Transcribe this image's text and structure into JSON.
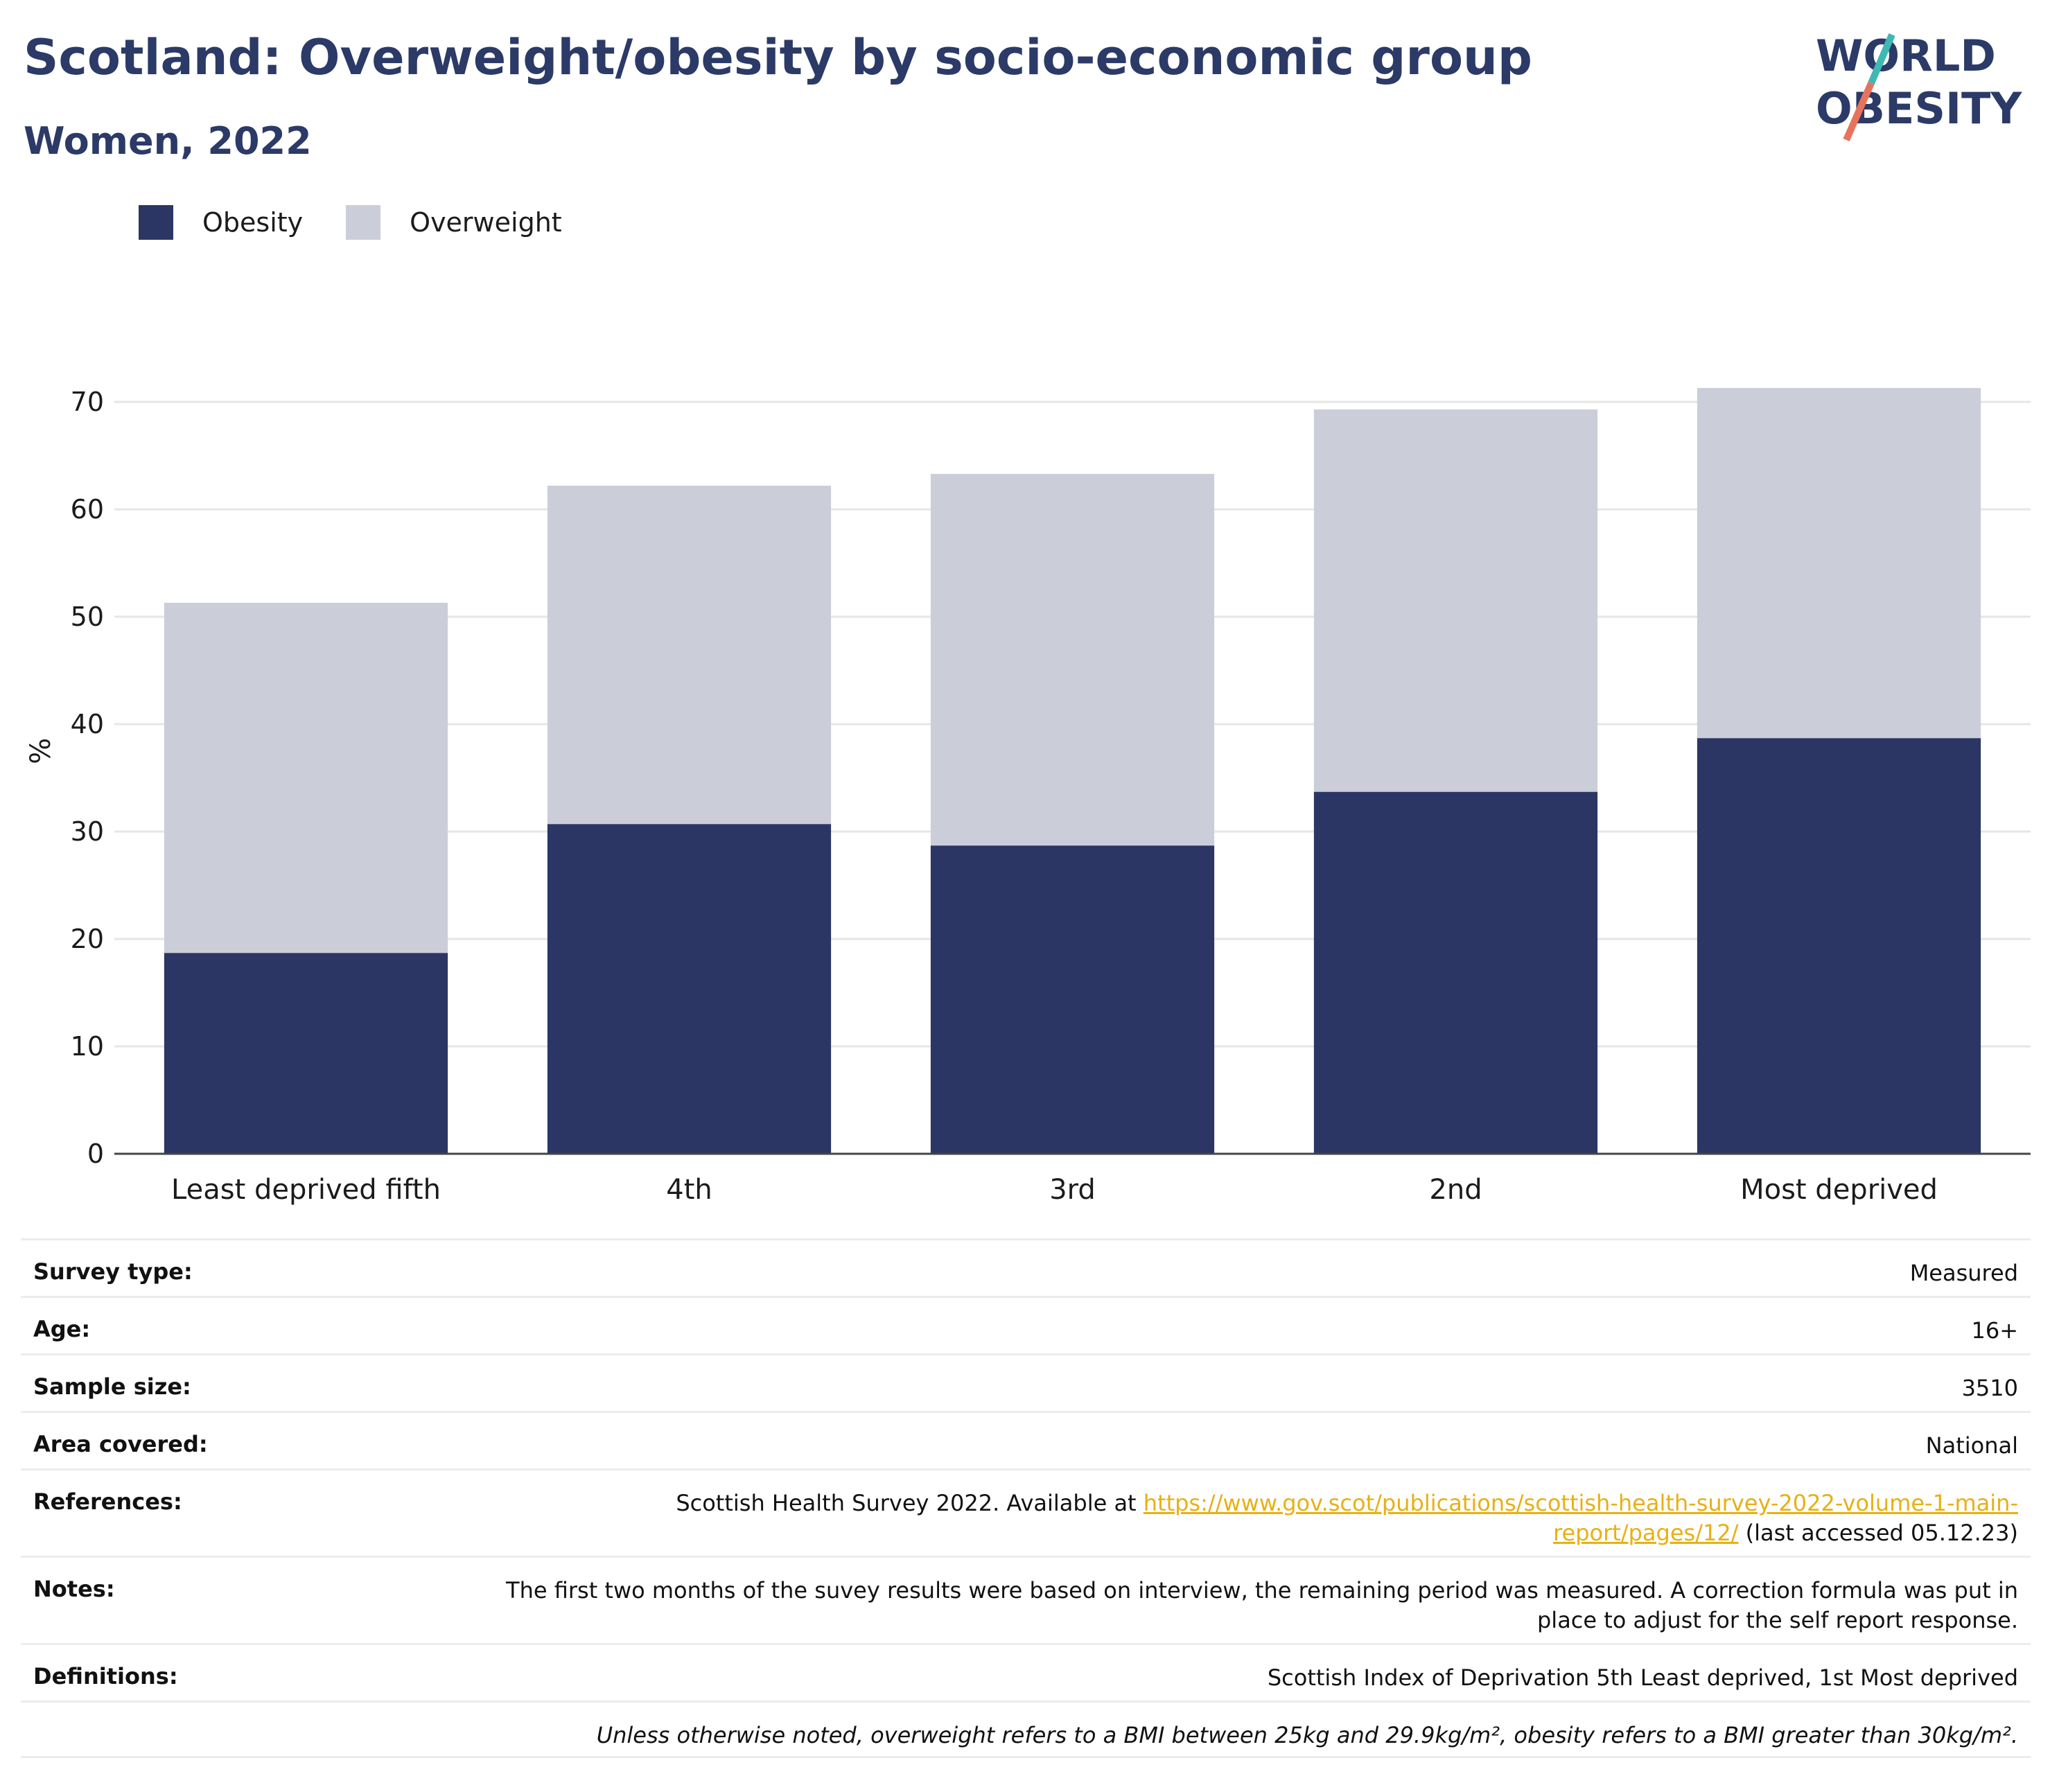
{
  "header": {
    "title": "Scotland: Overweight/obesity by socio-economic group",
    "subtitle": "Women, 2022"
  },
  "logo": {
    "line1": "WORLD",
    "line2": "OBESITY"
  },
  "colors": {
    "obesity": "#2b3664",
    "overweight": "#cbcdd9",
    "title": "#2b3a67",
    "link": "#e8b012"
  },
  "chart_data": {
    "type": "bar",
    "stacked": true,
    "categories": [
      "Least deprived fifth",
      "4th",
      "3rd",
      "2nd",
      "Most deprived"
    ],
    "series": [
      {
        "name": "Obesity",
        "values": [
          18.7,
          30.7,
          28.7,
          33.7,
          38.7
        ]
      },
      {
        "name": "Overweight",
        "values": [
          32.6,
          31.5,
          34.6,
          35.6,
          32.6
        ]
      }
    ],
    "ylabel": "%",
    "ylim": [
      0,
      75
    ],
    "yticks": [
      0,
      10,
      20,
      30,
      40,
      50,
      60,
      70
    ],
    "grid": true,
    "legend": "top-left"
  },
  "info": {
    "survey_type_label": "Survey type:",
    "survey_type": "Measured",
    "age_label": "Age:",
    "age": "16+",
    "sample_size_label": "Sample size:",
    "sample_size": "3510",
    "area_label": "Area covered:",
    "area": "National",
    "references_label": "References:",
    "references_text": "Scottish Health Survey 2022. Available at ",
    "references_link_1": "https://www.gov.scot/publications/scottish-health-survey-2022-volume-1-main-",
    "references_link_2": "report/pages/12/",
    "references_suffix": " (last accessed 05.12.23)",
    "notes_label": "Notes:",
    "notes_1": "The first two months of the suvey results were based on interview, the remaining period was measured. A correction formula was put in",
    "notes_2": "place to adjust for the self report response.",
    "definitions_label": "Definitions:",
    "definitions": "Scottish Index of Deprivation 5th Least deprived, 1st Most deprived",
    "footnote": "Unless otherwise noted, overweight refers to a BMI between 25kg and 29.9kg/m², obesity refers to a BMI greater than 30kg/m²."
  }
}
